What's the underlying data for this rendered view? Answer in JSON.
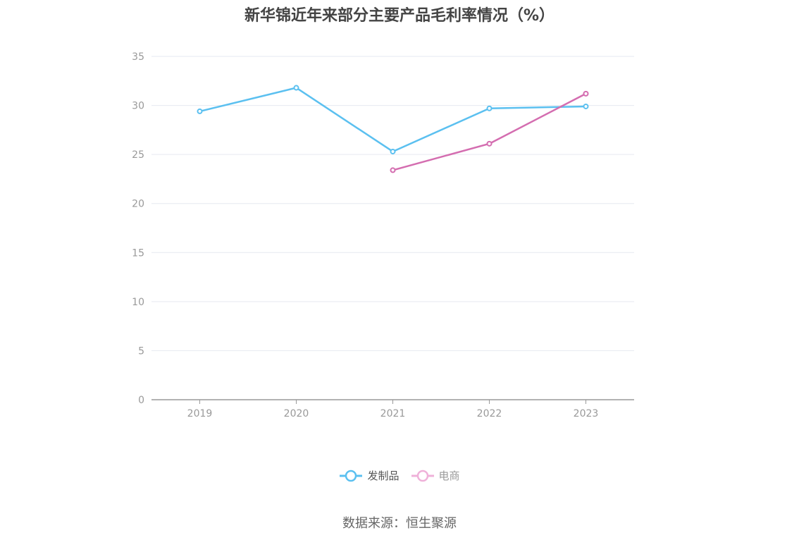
{
  "chart_data": {
    "type": "line",
    "title": "新华锦近年来部分主要产品毛利率情况（%）",
    "categories": [
      "2019",
      "2020",
      "2021",
      "2022",
      "2023"
    ],
    "series": [
      {
        "name": "发制品",
        "values": [
          29.4,
          31.8,
          25.3,
          29.7,
          29.9
        ],
        "color": "#5bc0f0"
      },
      {
        "name": "电商",
        "values": [
          null,
          null,
          23.4,
          26.1,
          31.2
        ],
        "color": "#d46db0"
      }
    ],
    "ylim": [
      0,
      35
    ],
    "yticks": [
      0,
      5,
      10,
      15,
      20,
      25,
      30,
      35
    ],
    "grid": true,
    "legend": "bottom-center"
  },
  "source": "数据来源：恒生聚源"
}
